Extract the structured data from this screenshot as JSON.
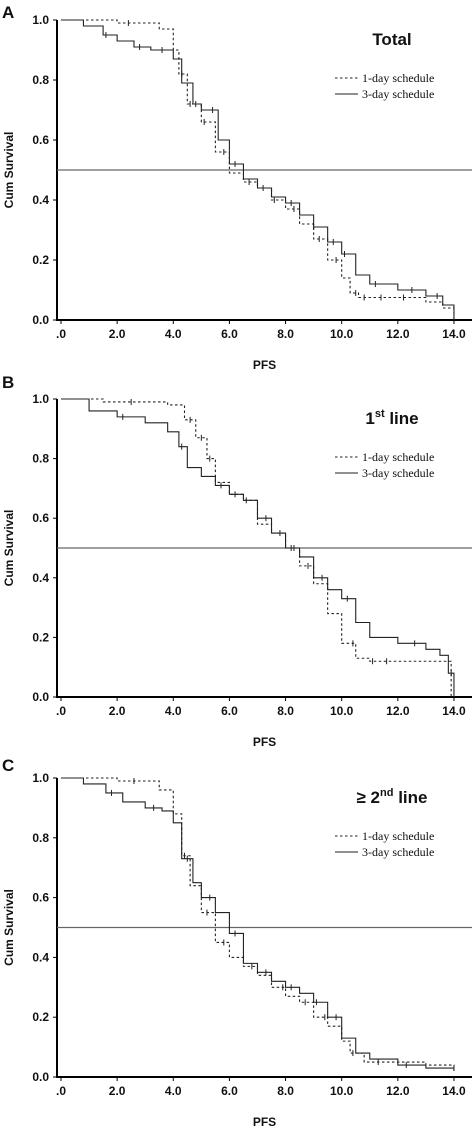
{
  "chart_data": [
    {
      "type": "line",
      "panel": "A",
      "title": "Total",
      "xlabel": "PFS",
      "ylabel": "Cum Survival",
      "xlim": [
        0,
        14.5
      ],
      "ylim": [
        0,
        1.0
      ],
      "xticks": [
        ".0",
        "2.0",
        "4.0",
        "6.0",
        "8.0",
        "10.0",
        "12.0",
        "14.0"
      ],
      "yticks": [
        "0.0",
        "0.2",
        "0.4",
        "0.6",
        "0.8",
        "1.0"
      ],
      "reference_line": 0.5,
      "legend_position": "top-right",
      "series": [
        {
          "name": "1-day schedule",
          "style": "dotted",
          "x": [
            0,
            2.0,
            3.5,
            4.0,
            4.2,
            4.5,
            5.0,
            5.5,
            6.0,
            6.5,
            7.0,
            7.5,
            8.0,
            8.5,
            9.0,
            9.5,
            10.0,
            10.3,
            10.6,
            11.0,
            12.0,
            13.0,
            13.6,
            14.0
          ],
          "y": [
            1.0,
            0.99,
            0.97,
            0.9,
            0.82,
            0.72,
            0.66,
            0.56,
            0.49,
            0.46,
            0.44,
            0.4,
            0.37,
            0.32,
            0.27,
            0.2,
            0.14,
            0.09,
            0.075,
            0.075,
            0.075,
            0.06,
            0.04,
            0.0
          ],
          "censor_x": [
            2.4,
            4.3,
            4.6,
            5.1,
            5.8,
            6.7,
            7.6,
            8.3,
            9.2,
            9.8,
            10.5,
            10.8,
            11.4,
            12.2
          ]
        },
        {
          "name": "3-day schedule",
          "style": "solid",
          "x": [
            0,
            0.8,
            1.5,
            2.0,
            2.6,
            3.2,
            4.0,
            4.3,
            4.7,
            5.0,
            5.6,
            6.0,
            6.5,
            7.0,
            7.5,
            8.0,
            8.5,
            9.0,
            9.5,
            10.0,
            10.5,
            11.0,
            12.0,
            13.0,
            13.6,
            14.0
          ],
          "y": [
            1.0,
            0.98,
            0.95,
            0.93,
            0.91,
            0.9,
            0.87,
            0.79,
            0.72,
            0.7,
            0.6,
            0.52,
            0.47,
            0.44,
            0.41,
            0.39,
            0.35,
            0.31,
            0.26,
            0.22,
            0.15,
            0.12,
            0.1,
            0.08,
            0.05,
            0.0
          ],
          "censor_x": [
            1.6,
            2.8,
            3.6,
            4.8,
            5.4,
            6.2,
            7.2,
            8.2,
            9.0,
            9.7,
            10.1,
            11.2,
            12.5,
            13.4
          ]
        }
      ]
    },
    {
      "type": "line",
      "panel": "B",
      "title": "1",
      "title_superscript": "st",
      "title_suffix": " line",
      "xlabel": "PFS",
      "ylabel": "Cum Survival",
      "xlim": [
        0,
        14.5
      ],
      "ylim": [
        0,
        1.0
      ],
      "xticks": [
        ".0",
        "2.0",
        "4.0",
        "6.0",
        "8.0",
        "10.0",
        "12.0",
        "14.0"
      ],
      "yticks": [
        "0.0",
        "0.2",
        "0.4",
        "0.6",
        "0.8",
        "1.0"
      ],
      "reference_line": 0.5,
      "legend_position": "top-right",
      "series": [
        {
          "name": "1-day schedule",
          "style": "dotted",
          "x": [
            0,
            1.5,
            3.0,
            3.8,
            4.4,
            4.8,
            5.2,
            5.5,
            6.0,
            6.5,
            7.0,
            7.5,
            8.0,
            8.5,
            9.0,
            9.5,
            10.0,
            10.5,
            11.0,
            13.6,
            13.9
          ],
          "y": [
            1.0,
            0.99,
            0.99,
            0.98,
            0.93,
            0.87,
            0.8,
            0.72,
            0.68,
            0.66,
            0.58,
            0.55,
            0.5,
            0.44,
            0.38,
            0.28,
            0.18,
            0.13,
            0.12,
            0.12,
            0.0
          ],
          "censor_x": [
            2.5,
            4.6,
            5.0,
            5.3,
            6.2,
            7.8,
            8.3,
            8.8,
            10.4,
            11.1,
            11.6
          ]
        },
        {
          "name": "3-day schedule",
          "style": "solid",
          "x": [
            0,
            1.0,
            2.0,
            3.0,
            3.8,
            4.2,
            4.5,
            5.0,
            5.5,
            6.0,
            6.5,
            7.0,
            7.5,
            8.0,
            8.5,
            9.0,
            9.5,
            10.0,
            10.5,
            11.0,
            12.0,
            13.0,
            13.5,
            13.8,
            14.0
          ],
          "y": [
            1.0,
            0.96,
            0.94,
            0.92,
            0.89,
            0.84,
            0.77,
            0.74,
            0.71,
            0.68,
            0.66,
            0.6,
            0.55,
            0.5,
            0.47,
            0.4,
            0.36,
            0.33,
            0.25,
            0.2,
            0.18,
            0.16,
            0.14,
            0.08,
            0.0
          ],
          "censor_x": [
            2.2,
            4.3,
            5.7,
            6.6,
            7.3,
            8.2,
            9.3,
            10.2,
            12.6,
            13.9
          ]
        }
      ]
    },
    {
      "type": "line",
      "panel": "C",
      "title": "≥ 2",
      "title_superscript": "nd",
      "title_suffix": " line",
      "xlabel": "PFS",
      "ylabel": "Cum Survival",
      "xlim": [
        0,
        14.5
      ],
      "ylim": [
        0,
        1.0
      ],
      "xticks": [
        ".0",
        "2.0",
        "4.0",
        "6.0",
        "8.0",
        "10.0",
        "12.0",
        "14.0"
      ],
      "yticks": [
        "0.0",
        "0.2",
        "0.4",
        "0.6",
        "0.8",
        "1.0"
      ],
      "reference_line": 0.5,
      "legend_position": "top-right",
      "series": [
        {
          "name": "1-day schedule",
          "style": "dotted",
          "x": [
            0,
            2.0,
            3.5,
            4.0,
            4.3,
            4.6,
            5.0,
            5.5,
            6.0,
            6.5,
            7.0,
            7.5,
            8.0,
            8.5,
            9.0,
            9.5,
            10.0,
            10.3,
            10.8,
            12.0,
            13.0,
            14.0
          ],
          "y": [
            1.0,
            0.99,
            0.96,
            0.88,
            0.74,
            0.64,
            0.55,
            0.45,
            0.4,
            0.37,
            0.34,
            0.3,
            0.27,
            0.25,
            0.2,
            0.17,
            0.12,
            0.08,
            0.05,
            0.05,
            0.04,
            0.02
          ],
          "censor_x": [
            2.6,
            4.4,
            5.2,
            5.8,
            6.8,
            7.9,
            8.7,
            9.4,
            10.4,
            11.3
          ]
        },
        {
          "name": "3-day schedule",
          "style": "solid",
          "x": [
            0,
            0.8,
            1.6,
            2.2,
            3.0,
            3.6,
            4.0,
            4.3,
            4.7,
            5.0,
            5.5,
            6.0,
            6.5,
            7.0,
            7.5,
            8.0,
            8.5,
            9.0,
            9.5,
            10.0,
            10.5,
            11.0,
            12.0,
            13.0,
            14.0
          ],
          "y": [
            1.0,
            0.98,
            0.95,
            0.92,
            0.9,
            0.89,
            0.85,
            0.73,
            0.65,
            0.6,
            0.55,
            0.48,
            0.38,
            0.35,
            0.32,
            0.3,
            0.28,
            0.25,
            0.2,
            0.13,
            0.08,
            0.06,
            0.04,
            0.03,
            0.02
          ],
          "censor_x": [
            1.8,
            3.3,
            4.5,
            5.3,
            6.2,
            7.3,
            8.2,
            9.1,
            9.8,
            12.3
          ]
        }
      ]
    }
  ]
}
